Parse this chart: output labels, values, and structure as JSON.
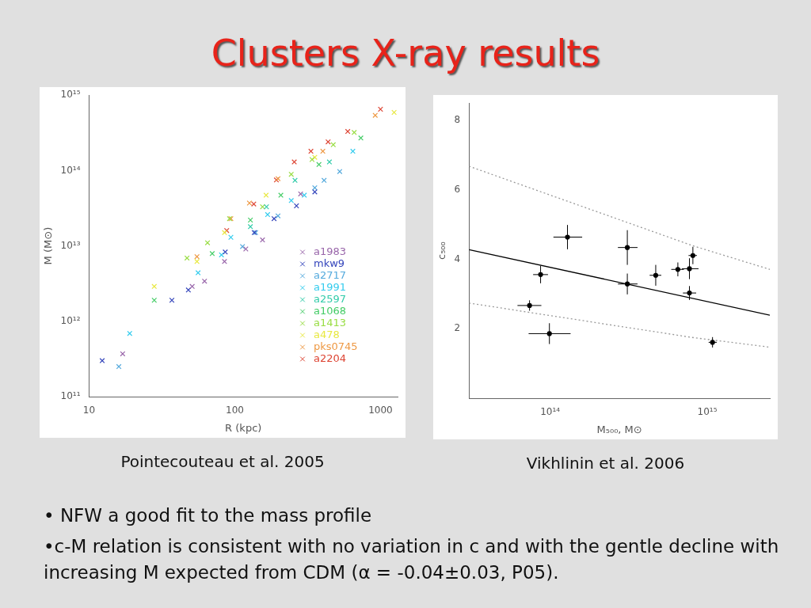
{
  "chart_data": [
    {
      "type": "other",
      "title": "Clusters X-ray results"
    },
    {
      "type": "scatter",
      "xlabel": "R (kpc)",
      "ylabel": "M (M⊙)",
      "log": "xy",
      "xlim": [
        10,
        1310
      ],
      "ylim": [
        100000000000.0,
        1000000000000000.0
      ],
      "xticks": [
        10,
        100,
        1000
      ],
      "yticks": [
        {
          "value": 100000000000.0,
          "label": "10¹¹"
        },
        {
          "value": 1000000000000.0,
          "label": "10¹²"
        },
        {
          "value": 10000000000000.0,
          "label": "10¹³"
        },
        {
          "value": 100000000000000.0,
          "label": "10¹⁴"
        },
        {
          "value": 1000000000000000.0,
          "label": "10¹⁵"
        }
      ],
      "grid": false,
      "legend": "bottom right",
      "marker": "cross",
      "series": [
        {
          "name": "a1983",
          "color": "#9966aa",
          "x": [
            17,
            51,
            62,
            85,
            119,
            155,
            283
          ],
          "values": [
            370000000000.0,
            2900000000000.0,
            3400000000000.0,
            6200000000000.0,
            9100000000000.0,
            12000000000000.0,
            49000000000000.0
          ]
        },
        {
          "name": "mkw9",
          "color": "#3344bb",
          "x": [
            12.3,
            37,
            48,
            86,
            136,
            186,
            265,
            354
          ],
          "values": [
            300000000000.0,
            1900000000000.0,
            2600000000000.0,
            8300000000000.0,
            15000000000000.0,
            23000000000000.0,
            34000000000000.0,
            52000000000000.0
          ]
        },
        {
          "name": "a2717",
          "color": "#55aadd",
          "x": [
            16,
            113,
            139,
            198,
            354,
            410,
            525
          ],
          "values": [
            250000000000.0,
            9800000000000.0,
            15000000000000.0,
            25000000000000.0,
            59000000000000.0,
            74000000000000.0,
            97000000000000.0
          ]
        },
        {
          "name": "a1991",
          "color": "#33ccee",
          "x": [
            19,
            56,
            81,
            94,
            168,
            244,
            300,
            646
          ],
          "values": [
            690000000000.0,
            4400000000000.0,
            7600000000000.0,
            13000000000000.0,
            26000000000000.0,
            40000000000000.0,
            47000000000000.0,
            180000000000000.0
          ]
        },
        {
          "name": "a2597",
          "color": "#33ccaa",
          "x": [
            128,
            165,
            259,
            446
          ],
          "values": [
            18000000000000.0,
            33000000000000.0,
            74000000000000.0,
            130000000000000.0
          ]
        },
        {
          "name": "a1068",
          "color": "#44cc66",
          "x": [
            28,
            70,
            128,
            207,
            378,
            733
          ],
          "values": [
            1900000000000.0,
            7900000000000.0,
            22000000000000.0,
            47000000000000.0,
            120000000000000.0,
            270000000000000.0
          ]
        },
        {
          "name": "a1413",
          "color": "#99dd44",
          "x": [
            47,
            65,
            92,
            155,
            244,
            339,
            474,
            660
          ],
          "values": [
            6900000000000.0,
            11000000000000.0,
            23000000000000.0,
            33000000000000.0,
            89000000000000.0,
            140000000000000.0,
            220000000000000.0,
            320000000000000.0
          ]
        },
        {
          "name": "a478",
          "color": "#e8e840",
          "x": [
            28,
            55,
            85,
            164,
            354,
            1240
          ],
          "values": [
            2900000000000.0,
            6200000000000.0,
            15000000000000.0,
            47000000000000.0,
            150000000000000.0,
            590000000000000.0
          ]
        },
        {
          "name": "pks0745",
          "color": "#ee9944",
          "x": [
            55,
            94,
            126,
            198,
            402,
            920
          ],
          "values": [
            7200000000000.0,
            23000000000000.0,
            37000000000000.0,
            78000000000000.0,
            180000000000000.0,
            540000000000000.0
          ]
        },
        {
          "name": "a2204",
          "color": "#dd4433",
          "x": [
            88,
            135,
            193,
            256,
            333,
            437,
            596,
            1000
          ],
          "values": [
            16000000000000.0,
            36000000000000.0,
            75000000000000.0,
            130000000000000.0,
            180000000000000.0,
            240000000000000.0,
            330000000000000.0,
            650000000000000.0
          ]
        }
      ],
      "annotations": [
        "Pointecouteau et al. 2005"
      ]
    },
    {
      "type": "scatter",
      "xlabel": "M₅₀₀, M⊙",
      "ylabel": "c₅₀₀",
      "log": "x",
      "xlim": [
        30500000000000.0,
        2500000000000000.0
      ],
      "ylim": [
        0,
        8.5
      ],
      "xticks": [
        {
          "value": 100000000000000.0,
          "label": "10¹⁴"
        },
        {
          "value": 1000000000000000.0,
          "label": "10¹⁵"
        }
      ],
      "yticks": [
        2,
        4,
        6,
        8
      ],
      "grid": false,
      "series": [
        {
          "color": "#000000",
          "marker": "circle",
          "x": [
            74000000000000.0,
            87000000000000.0,
            99000000000000.0,
            129000000000000.0,
            310000000000000.0,
            310000000000000.0,
            470000000000000.0,
            650000000000000.0,
            770000000000000.0,
            770000000000000.0,
            810000000000000.0,
            1080000000000000.0
          ],
          "values": [
            2.67,
            3.56,
            1.86,
            4.64,
            4.34,
            3.29,
            3.54,
            3.71,
            3.73,
            3.03,
            4.11,
            1.61
          ],
          "errors": [
            0.15,
            0.25,
            0.3,
            0.35,
            0.5,
            0.3,
            0.3,
            0.2,
            0.3,
            0.2,
            0.25,
            0.15
          ],
          "xerrors": [
            [
              62000000000000.0,
              88000000000000.0
            ],
            [
              78000000000000.0,
              97000000000000.0
            ],
            [
              73000000000000.0,
              135000000000000.0
            ],
            [
              105000000000000.0,
              160000000000000.0
            ],
            [
              270000000000000.0,
              360000000000000.0
            ],
            [
              270000000000000.0,
              360000000000000.0
            ],
            [
              430000000000000.0,
              510000000000000.0
            ],
            [
              590000000000000.0,
              710000000000000.0
            ],
            [
              690000000000000.0,
              880000000000000.0
            ],
            [
              700000000000000.0,
              850000000000000.0
            ],
            [
              760000000000000.0,
              860000000000000.0
            ],
            [
              1020000000000000.0,
              1150000000000000.0
            ]
          ]
        },
        {
          "type": "line",
          "color": "#000000",
          "marker": "none",
          "line_style": "solid",
          "x": [
            30500000000000.0,
            2500000000000000.0
          ],
          "values": [
            4.28,
            2.39
          ]
        },
        {
          "type": "line",
          "color": "#999999",
          "marker": "none",
          "line_style": "dotted",
          "x": [
            30500000000000.0,
            810000000000000.0,
            2500000000000000.0
          ],
          "values": [
            6.68,
            4.39,
            3.71
          ]
        },
        {
          "type": "line",
          "color": "#999999",
          "marker": "none",
          "line_style": "dotted",
          "x": [
            30500000000000.0,
            800000000000000.0,
            2500000000000000.0
          ],
          "values": [
            2.74,
            1.75,
            1.47
          ]
        }
      ],
      "annotations": [
        "Vikhlinin et al. 2006"
      ]
    },
    {
      "type": "other",
      "annotations": [
        "• NFW a good fit to the mass profile",
        "•c-M relation is consistent with no variation in c and with the gentle decline with increasing M expected from CDM (α = -0.04±0.03, P05)."
      ]
    }
  ]
}
